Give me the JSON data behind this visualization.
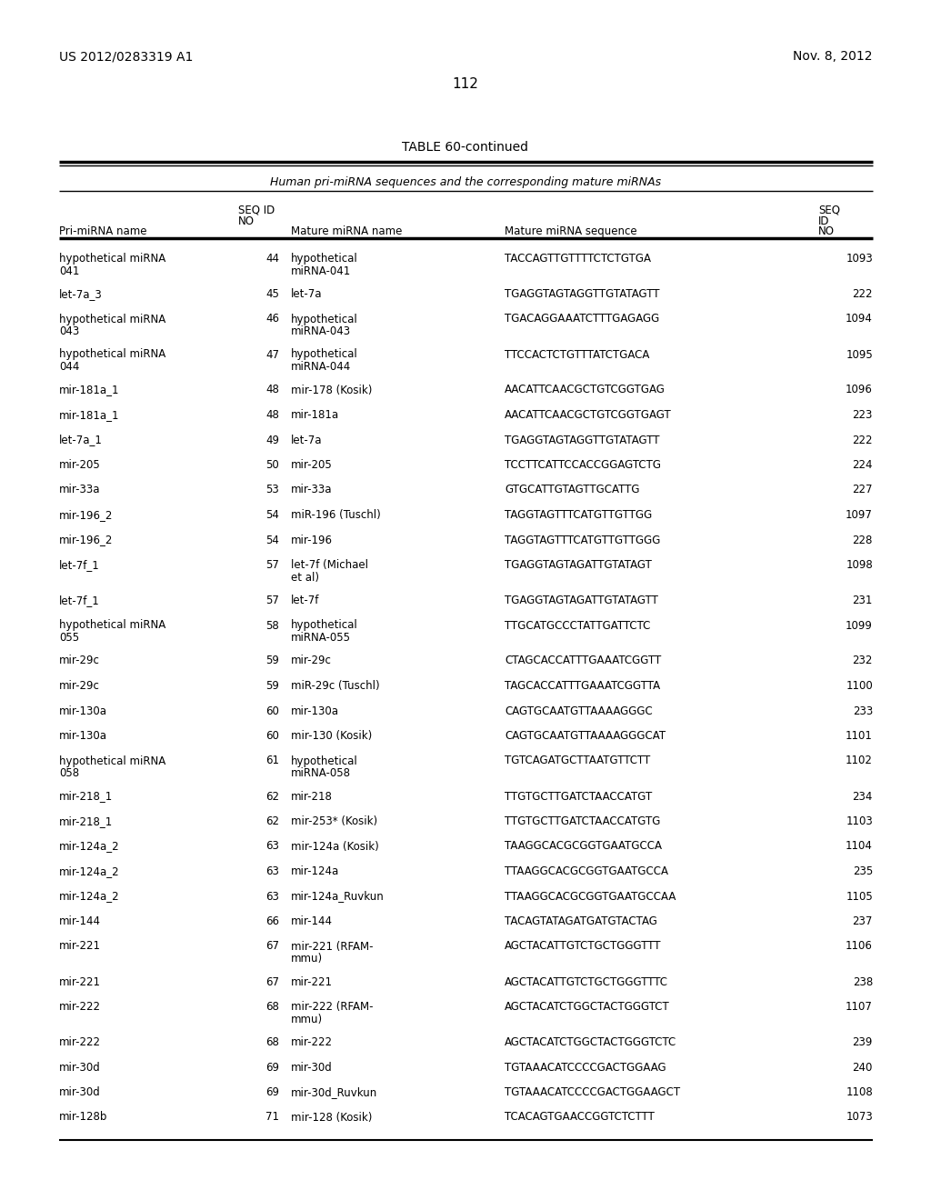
{
  "header_left": "US 2012/0283319 A1",
  "header_right": "Nov. 8, 2012",
  "page_number": "112",
  "table_title": "TABLE 60-continued",
  "table_subtitle": "Human pri-miRNA sequences and the corresponding mature miRNAs",
  "rows": [
    [
      "hypothetical miRNA\n041",
      "44",
      "hypothetical\nmiRNA-041",
      "TACCAGTTGTTTTCTCTGTGA",
      "1093"
    ],
    [
      "let-7a_3",
      "45",
      "let-7a",
      "TGAGGTAGTAGGTTGTATAGTT",
      "222"
    ],
    [
      "hypothetical miRNA\n043",
      "46",
      "hypothetical\nmiRNA-043",
      "TGACAGGAAATCTTTGAGAGG",
      "1094"
    ],
    [
      "hypothetical miRNA\n044",
      "47",
      "hypothetical\nmiRNA-044",
      "TTCCACTCTGTTTATCTGACA",
      "1095"
    ],
    [
      "mir-181a_1",
      "48",
      "mir-178 (Kosik)",
      "AACATTCAACGCTGTCGGTGAG",
      "1096"
    ],
    [
      "mir-181a_1",
      "48",
      "mir-181a",
      "AACATTCAACGCTGTCGGTGAGT",
      "223"
    ],
    [
      "let-7a_1",
      "49",
      "let-7a",
      "TGAGGTAGTAGGTTGTATAGTT",
      "222"
    ],
    [
      "mir-205",
      "50",
      "mir-205",
      "TCCTTCATTCCACCGGAGTCTG",
      "224"
    ],
    [
      "mir-33a",
      "53",
      "mir-33a",
      "GTGCATTGTAGTTGCATTG",
      "227"
    ],
    [
      "mir-196_2",
      "54",
      "miR-196 (Tuschl)",
      "TAGGTAGTTTCATGTTGTTGG",
      "1097"
    ],
    [
      "mir-196_2",
      "54",
      "mir-196",
      "TAGGTAGTTTCATGTTGTTGGG",
      "228"
    ],
    [
      "let-7f_1",
      "57",
      "let-7f (Michael\net al)",
      "TGAGGTAGTAGATTGTATAGT",
      "1098"
    ],
    [
      "let-7f_1",
      "57",
      "let-7f",
      "TGAGGTAGTAGATTGTATAGTT",
      "231"
    ],
    [
      "hypothetical miRNA\n055",
      "58",
      "hypothetical\nmiRNA-055",
      "TTGCATGCCCTATTGATTCTC",
      "1099"
    ],
    [
      "mir-29c",
      "59",
      "mir-29c",
      "CTAGCACCATTTGAAATCGGTT",
      "232"
    ],
    [
      "mir-29c",
      "59",
      "miR-29c (Tuschl)",
      "TAGCACCATTTGAAATCGGTTA",
      "1100"
    ],
    [
      "mir-130a",
      "60",
      "mir-130a",
      "CAGTGCAATGTTAAAAGGGC",
      "233"
    ],
    [
      "mir-130a",
      "60",
      "mir-130 (Kosik)",
      "CAGTGCAATGTTAAAAGGGCAT",
      "1101"
    ],
    [
      "hypothetical miRNA\n058",
      "61",
      "hypothetical\nmiRNA-058",
      "TGTCAGATGCTTAATGTTCTT",
      "1102"
    ],
    [
      "mir-218_1",
      "62",
      "mir-218",
      "TTGTGCTTGATCTAACCATGT",
      "234"
    ],
    [
      "mir-218_1",
      "62",
      "mir-253* (Kosik)",
      "TTGTGCTTGATCTAACCATGTG",
      "1103"
    ],
    [
      "mir-124a_2",
      "63",
      "mir-124a (Kosik)",
      "TAAGGCACGCGGTGAATGCCA",
      "1104"
    ],
    [
      "mir-124a_2",
      "63",
      "mir-124a",
      "TTAAGGCACGCGGTGAATGCCA",
      "235"
    ],
    [
      "mir-124a_2",
      "63",
      "mir-124a_Ruvkun",
      "TTAAGGCACGCGGTGAATGCCAA",
      "1105"
    ],
    [
      "mir-144",
      "66",
      "mir-144",
      "TACAGTATAGATGATGTACTAG",
      "237"
    ],
    [
      "mir-221",
      "67",
      "mir-221 (RFAM-\nmmu)",
      "AGCTACATTGTCTGCTGGGTTT",
      "1106"
    ],
    [
      "mir-221",
      "67",
      "mir-221",
      "AGCTACATTGTCTGCTGGGTTTC",
      "238"
    ],
    [
      "mir-222",
      "68",
      "mir-222 (RFAM-\nmmu)",
      "AGCTACATCTGGCTACTGGGTCT",
      "1107"
    ],
    [
      "mir-222",
      "68",
      "mir-222",
      "AGCTACATCTGGCTACTGGGTCTC",
      "239"
    ],
    [
      "mir-30d",
      "69",
      "mir-30d",
      "TGTAAACATCCCCGACTGGAAG",
      "240"
    ],
    [
      "mir-30d",
      "69",
      "mir-30d_Ruvkun",
      "TGTAAACATCCCCGACTGGAAGCT",
      "1108"
    ],
    [
      "mir-128b",
      "71",
      "mir-128 (Kosik)",
      "TCACAGTGAACCGGTCTCTTT",
      "1073"
    ]
  ],
  "bg_color": "#ffffff",
  "text_color": "#000000"
}
